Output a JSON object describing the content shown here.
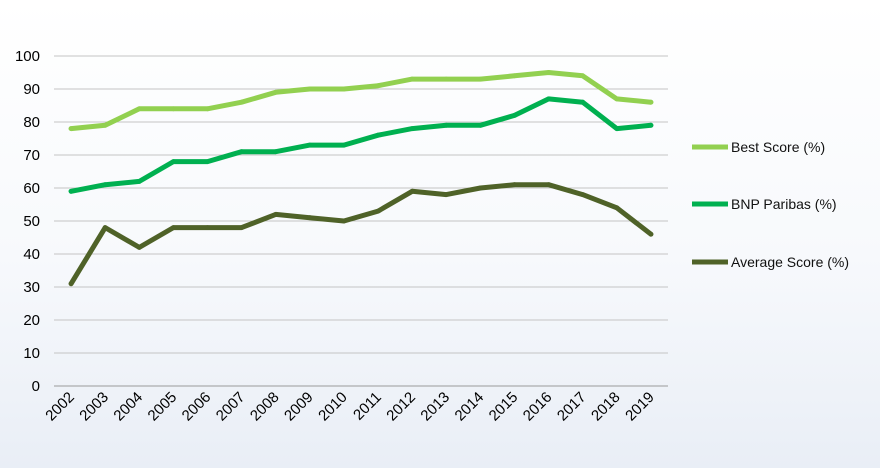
{
  "chart_data": {
    "type": "line",
    "title": "",
    "xlabel": "",
    "ylabel": "",
    "ylim": [
      0,
      100
    ],
    "yticks": [
      0,
      10,
      20,
      30,
      40,
      50,
      60,
      70,
      80,
      90,
      100
    ],
    "grid": true,
    "legend_position": "right",
    "categories": [
      "2002",
      "2003",
      "2004",
      "2005",
      "2006",
      "2007",
      "2008",
      "2009",
      "2010",
      "2011",
      "2012",
      "2013",
      "2014",
      "2015",
      "2016",
      "2017",
      "2018",
      "2019"
    ],
    "series": [
      {
        "name": "Best Score (%)",
        "color": "#92d050",
        "values": [
          78,
          79,
          84,
          84,
          84,
          86,
          89,
          90,
          90,
          91,
          93,
          93,
          93,
          94,
          95,
          94,
          87,
          86
        ]
      },
      {
        "name": "BNP Paribas (%)",
        "color": "#00b050",
        "values": [
          59,
          61,
          62,
          68,
          68,
          71,
          71,
          73,
          73,
          76,
          78,
          79,
          79,
          82,
          87,
          86,
          78,
          79
        ]
      },
      {
        "name": "Average Score (%)",
        "color": "#4f6228",
        "values": [
          31,
          48,
          42,
          48,
          48,
          48,
          52,
          51,
          50,
          53,
          59,
          58,
          60,
          61,
          61,
          58,
          54,
          46
        ]
      }
    ]
  }
}
